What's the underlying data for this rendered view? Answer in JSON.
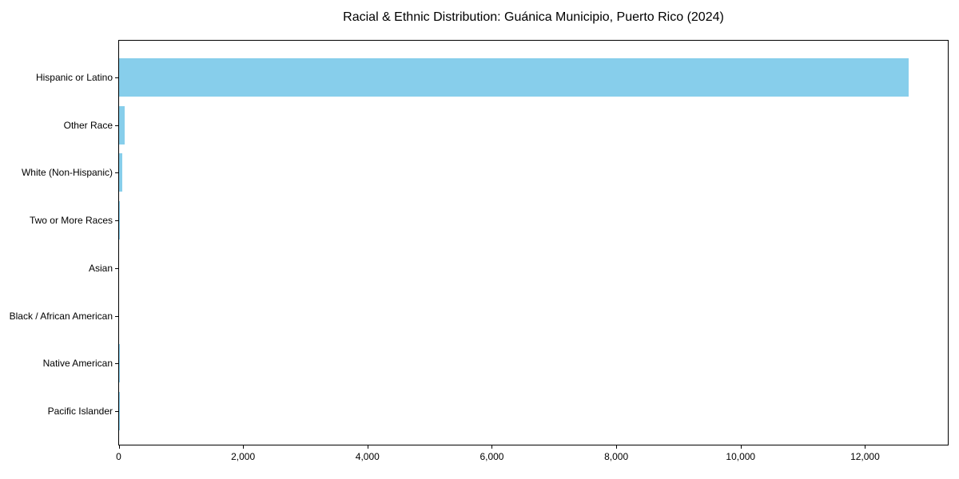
{
  "title": "Racial & Ethnic Distribution: Guánica Municipio, Puerto Rico (2024)",
  "chart_data": {
    "type": "bar",
    "orientation": "horizontal",
    "title": "Racial & Ethnic Distribution: Guánica Municipio, Puerto Rico (2024)",
    "categories": [
      "Hispanic or Latino",
      "Other Race",
      "White (Non-Hispanic)",
      "Two or More Races",
      "Asian",
      "Black / African American",
      "Native American",
      "Pacific Islander"
    ],
    "values": [
      12700,
      90,
      50,
      15,
      0,
      0,
      3,
      2
    ],
    "xlabel": "",
    "ylabel": "",
    "xlim": [
      0,
      13350
    ],
    "xticks": [
      0,
      2000,
      4000,
      6000,
      8000,
      10000,
      12000
    ],
    "xtick_labels": [
      "0",
      "2,000",
      "4,000",
      "6,000",
      "8,000",
      "10,000",
      "12,000"
    ],
    "bar_color": "#87CEEB",
    "axis_color": "#000000",
    "text_color": "#000000",
    "background_color": "#ffffff",
    "grid": false,
    "legend": null
  }
}
